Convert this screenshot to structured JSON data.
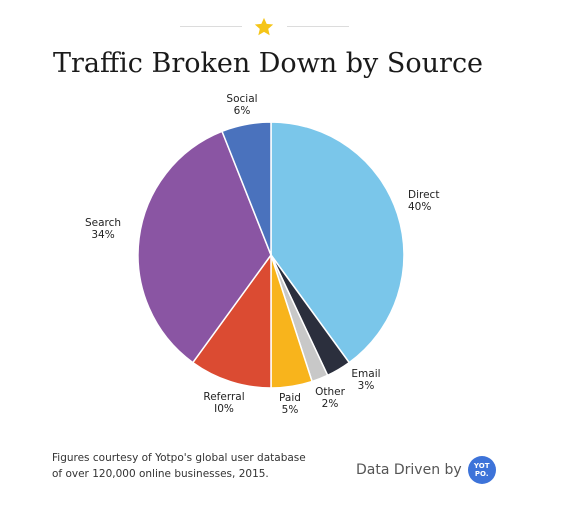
{
  "header": {
    "title": "Traffic Broken Down by Source"
  },
  "footer": {
    "note_line1": "Figures courtesy of Yotpo's global user database",
    "note_line2": "of over 120,000 online businesses, 2015.",
    "credit": "Data Driven by",
    "badge_text": "YOT PO."
  },
  "colors": {
    "accent_star": "#f5c518"
  },
  "chart_data": {
    "type": "pie",
    "title": "Traffic Broken Down by Source",
    "start_angle_deg": 0,
    "direction": "clockwise",
    "slices": [
      {
        "name": "Direct",
        "value": 40,
        "label": "40%",
        "color": "#7ac6ea"
      },
      {
        "name": "Email",
        "value": 3,
        "label": "3%",
        "color": "#2b2f3d"
      },
      {
        "name": "Other",
        "value": 2,
        "label": "2%",
        "color": "#c8c8c8"
      },
      {
        "name": "Paid",
        "value": 5,
        "label": "5%",
        "color": "#f8b41c"
      },
      {
        "name": "Referral",
        "value": 10,
        "label": "I0%",
        "color": "#db4b32"
      },
      {
        "name": "Search",
        "value": 34,
        "label": "34%",
        "color": "#8a55a3"
      },
      {
        "name": "Social",
        "value": 6,
        "label": "6%",
        "color": "#4a72bd"
      }
    ]
  }
}
